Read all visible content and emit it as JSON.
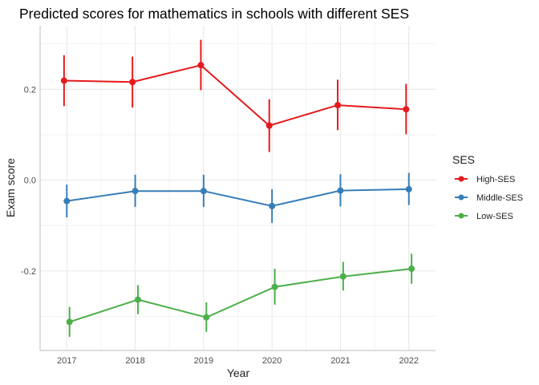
{
  "chart_data": {
    "type": "line",
    "title": "Predicted scores for mathematics in schools with different SES",
    "xlabel": "Year",
    "ylabel": "Exam score",
    "x": [
      2017,
      2018,
      2019,
      2020,
      2021,
      2022
    ],
    "xticks": [
      "2017",
      "2018",
      "2019",
      "2020",
      "2021",
      "2022"
    ],
    "yticks": [
      -0.2,
      0.0,
      0.2
    ],
    "ytick_labels": [
      "-0.2",
      "0.0",
      "0.2"
    ],
    "ylim": [
      -0.375,
      0.34
    ],
    "grid": true,
    "legend": {
      "title": "SES",
      "position": "right"
    },
    "series": [
      {
        "name": "High-SES",
        "color": "#E41A1C",
        "values": [
          0.219,
          0.216,
          0.253,
          0.12,
          0.165,
          0.156
        ],
        "lower": [
          0.163,
          0.16,
          0.198,
          0.062,
          0.11,
          0.101
        ],
        "upper": [
          0.275,
          0.272,
          0.309,
          0.178,
          0.221,
          0.212
        ]
      },
      {
        "name": "Middle-SES",
        "color": "#377EB8",
        "values": [
          -0.046,
          -0.024,
          -0.024,
          -0.057,
          -0.023,
          -0.02
        ],
        "lower": [
          -0.082,
          -0.059,
          -0.059,
          -0.094,
          -0.058,
          -0.055
        ],
        "upper": [
          -0.01,
          0.012,
          0.012,
          -0.02,
          0.013,
          0.016
        ]
      },
      {
        "name": "Low-SES",
        "color": "#4DAF4A",
        "values": [
          -0.312,
          -0.263,
          -0.302,
          -0.235,
          -0.212,
          -0.195
        ],
        "lower": [
          -0.345,
          -0.295,
          -0.334,
          -0.274,
          -0.243,
          -0.228
        ],
        "upper": [
          -0.279,
          -0.231,
          -0.269,
          -0.195,
          -0.18,
          -0.162
        ]
      }
    ]
  }
}
